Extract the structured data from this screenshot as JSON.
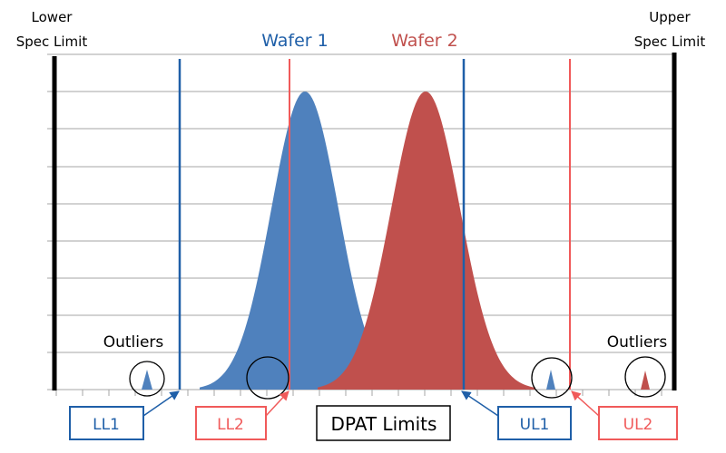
{
  "labels": {
    "lower_spec_line1": "Lower",
    "lower_spec_line2": "Spec Limit",
    "upper_spec_line1": "Upper",
    "upper_spec_line2": "Spec Limit",
    "wafer1": "Wafer 1",
    "wafer2": "Wafer 2",
    "outliers_left": "Outliers",
    "outliers_right": "Outliers",
    "ll1": "LL1",
    "ll2": "LL2",
    "ul1": "UL1",
    "ul2": "UL2",
    "dpat_limits": "DPAT Limits"
  },
  "colors": {
    "wafer1": "#4f81bd",
    "wafer1_line": "#1f5fa8",
    "wafer2": "#c0504d",
    "wafer2_line": "#f05a5a",
    "spec_limit": "#000000",
    "grid": "#a6a6a6"
  }
}
